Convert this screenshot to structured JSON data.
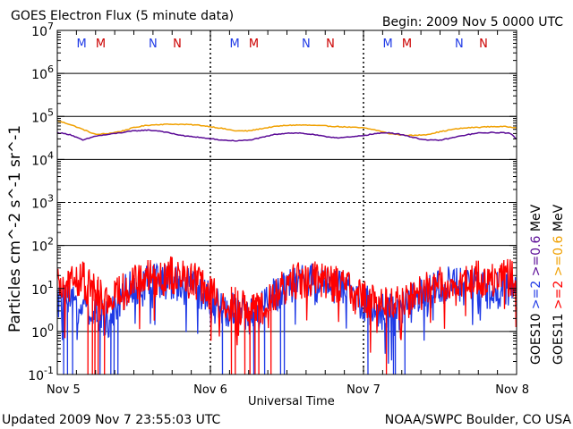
{
  "header": {
    "title": "GOES Electron Flux (5 minute data)",
    "begin": "Begin: 2009 Nov 5 0000 UTC"
  },
  "footer": {
    "updated": "Updated 2009 Nov  7 23:55:03 UTC",
    "source": "NOAA/SWPC Boulder, CO USA"
  },
  "colors": {
    "goes10_gt2": "#1f3ae6",
    "goes11_gt2": "#ff0000",
    "goes10_gt06": "#5a0a96",
    "goes11_gt06": "#f0a000",
    "eclipse_n": "#1f3ae6",
    "eclipse_m": "#cc0000"
  },
  "chart_data": {
    "type": "line",
    "title": "GOES Electron Flux (5 minute data)",
    "xlabel": "Universal Time",
    "ylabel": "Particles cm^-2 s^-1 sr^-1",
    "yscale": "log",
    "ylim": [
      0.1,
      10000000
    ],
    "y_tick_exponents": [
      "7",
      "6",
      "5",
      "4",
      "3",
      "2",
      "1",
      "0",
      "-1"
    ],
    "xlim_hours": [
      0,
      72
    ],
    "x_ticks": [
      {
        "hour": 0,
        "label": "Nov 5"
      },
      {
        "hour": 24,
        "label": "Nov 6"
      },
      {
        "hour": 48,
        "label": "Nov 7"
      },
      {
        "hour": 72,
        "label": "Nov 8"
      }
    ],
    "gridlines_at": [
      1,
      100,
      10000,
      100000,
      1000000
    ],
    "dashed_gridlines_at": [
      1000
    ],
    "eclipse_markers": [
      {
        "hour": 3.8,
        "label": "M",
        "color": "eclipse_n"
      },
      {
        "hour": 6.8,
        "label": "M",
        "color": "eclipse_m"
      },
      {
        "hour": 15.0,
        "label": "N",
        "color": "eclipse_n"
      },
      {
        "hour": 18.8,
        "label": "N",
        "color": "eclipse_m"
      },
      {
        "hour": 27.8,
        "label": "M",
        "color": "eclipse_n"
      },
      {
        "hour": 30.8,
        "label": "M",
        "color": "eclipse_m"
      },
      {
        "hour": 39.0,
        "label": "N",
        "color": "eclipse_n"
      },
      {
        "hour": 42.8,
        "label": "N",
        "color": "eclipse_m"
      },
      {
        "hour": 51.8,
        "label": "M",
        "color": "eclipse_n"
      },
      {
        "hour": 54.8,
        "label": "M",
        "color": "eclipse_m"
      },
      {
        "hour": 63.0,
        "label": "N",
        "color": "eclipse_n"
      },
      {
        "hour": 66.8,
        "label": "N",
        "color": "eclipse_m"
      }
    ],
    "series": [
      {
        "name": "GOES11 >=0.6 MeV",
        "color": "goes11_gt06",
        "hours": [
          0,
          2,
          4,
          6,
          8,
          10,
          12,
          14,
          16,
          18,
          20,
          22,
          24,
          26,
          28,
          30,
          32,
          34,
          36,
          38,
          40,
          42,
          44,
          46,
          48,
          50,
          52,
          54,
          56,
          58,
          60,
          62,
          64,
          66,
          68,
          70,
          72
        ],
        "values": [
          80000,
          65000,
          50000,
          38000,
          40000,
          45000,
          55000,
          62000,
          65000,
          66000,
          65000,
          63000,
          58000,
          52000,
          46000,
          46000,
          52000,
          58000,
          62000,
          63000,
          62000,
          60000,
          58000,
          56000,
          54000,
          48000,
          40000,
          37000,
          36000,
          38000,
          44000,
          50000,
          54000,
          56000,
          58000,
          58000,
          55000
        ]
      },
      {
        "name": "GOES10 >=0.6 MeV",
        "color": "goes10_gt06",
        "hours": [
          0,
          2,
          4,
          6,
          8,
          10,
          12,
          14,
          16,
          18,
          20,
          22,
          24,
          26,
          28,
          30,
          32,
          34,
          36,
          38,
          40,
          42,
          44,
          46,
          48,
          50,
          52,
          54,
          56,
          58,
          60,
          62,
          64,
          66,
          68,
          70,
          71,
          72
        ],
        "values": [
          42000,
          38000,
          28000,
          35000,
          38000,
          42000,
          46000,
          48000,
          46000,
          40000,
          35000,
          33000,
          30000,
          28000,
          27000,
          28000,
          32000,
          38000,
          41000,
          41000,
          38000,
          34000,
          32000,
          33000,
          36000,
          40000,
          42000,
          38000,
          32000,
          28000,
          28000,
          32000,
          37000,
          41000,
          42000,
          42000,
          40000,
          30000
        ]
      },
      {
        "name": "GOES10 >=2 MeV",
        "color": "goes10_gt2",
        "hours": [
          0,
          2,
          4,
          6,
          8,
          10,
          12,
          14,
          16,
          18,
          20,
          22,
          24,
          26,
          28,
          30,
          32,
          34,
          36,
          38,
          40,
          42,
          44,
          46,
          48,
          50,
          52,
          54,
          56,
          58,
          60,
          62,
          64,
          66,
          68,
          70,
          72
        ],
        "values": [
          5,
          4,
          4,
          2,
          2,
          7,
          12,
          14,
          16,
          15,
          13,
          9,
          5,
          3,
          3,
          2,
          3,
          7,
          12,
          14,
          14,
          13,
          11,
          8,
          5,
          3,
          3,
          3,
          5,
          8,
          12,
          12,
          11,
          11,
          10,
          10,
          11
        ],
        "dropouts": [
          1.0,
          1.6,
          2.4,
          6.7,
          8.4,
          8.9,
          9.5,
          25.9,
          30.8,
          32.5,
          35.0,
          35.6,
          48.7,
          52.7,
          53.0,
          54.5
        ]
      },
      {
        "name": "GOES11 >=2 MeV",
        "color": "goes11_gt2",
        "hours": [
          0,
          2,
          4,
          6,
          8,
          10,
          12,
          14,
          16,
          18,
          20,
          22,
          24,
          26,
          28,
          30,
          32,
          34,
          36,
          38,
          40,
          42,
          44,
          46,
          48,
          50,
          52,
          54,
          56,
          58,
          60,
          62,
          64,
          66,
          68,
          70,
          72
        ],
        "values": [
          10,
          14,
          16,
          8,
          5,
          8,
          13,
          16,
          18,
          20,
          17,
          14,
          8,
          5,
          4,
          3,
          3,
          6,
          12,
          16,
          17,
          15,
          12,
          9,
          6,
          5,
          4,
          4,
          6,
          10,
          13,
          14,
          15,
          16,
          17,
          18,
          18
        ],
        "dropouts": [
          4.8,
          5.5,
          5.9,
          6.4,
          7.4,
          27.3,
          27.9,
          29.4,
          30.2,
          31.0,
          31.6,
          33.5,
          51.6
        ]
      }
    ],
    "legend": {
      "position": "right-vertical",
      "goes10_label": "GOES10",
      "goes11_label": "GOES11",
      "gt2_label": ">=2",
      "gt06_label": ">=0.6",
      "unit": "MeV"
    }
  }
}
